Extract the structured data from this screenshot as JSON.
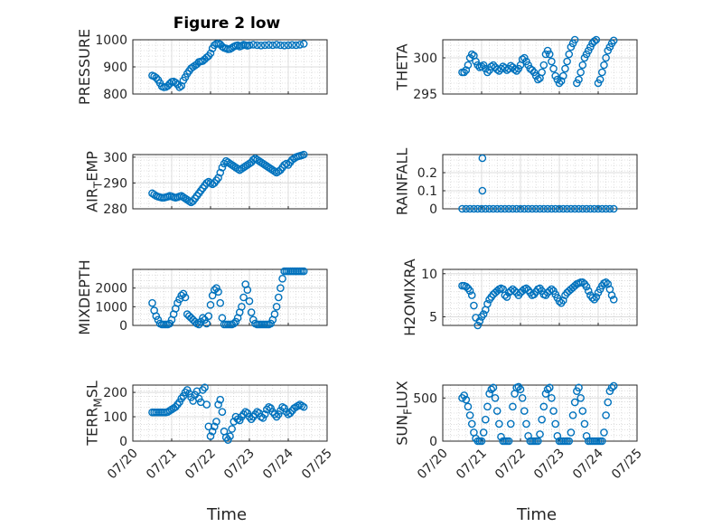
{
  "figure": {
    "title": "Figure 2 low",
    "xlabel": "Time"
  },
  "colors": {
    "marker": "#0072BD",
    "axis": "#262626",
    "grid": "#dcdcdc",
    "minor_grid": "#c8c8c8"
  },
  "chart_data": [
    {
      "id": "pressure",
      "type": "scatter",
      "ylabel": "PRESSURE",
      "ylim": [
        800,
        1000
      ],
      "yticks": [
        800,
        900,
        1000
      ],
      "ytick_labels": [
        "800",
        "900",
        "1000"
      ],
      "xlim": [
        "07/20",
        "07/25"
      ],
      "xticks": [
        "07/20",
        "07/21",
        "07/22",
        "07/23",
        "07/24",
        "07/25"
      ],
      "grid": true,
      "x": [
        0.5,
        0.55,
        0.6,
        0.65,
        0.7,
        0.75,
        0.8,
        0.85,
        0.9,
        0.95,
        1.0,
        1.05,
        1.1,
        1.15,
        1.2,
        1.25,
        1.3,
        1.35,
        1.4,
        1.45,
        1.5,
        1.55,
        1.6,
        1.65,
        1.7,
        1.75,
        1.8,
        1.85,
        1.9,
        1.95,
        2.0,
        2.05,
        2.1,
        2.15,
        2.2,
        2.25,
        2.3,
        2.35,
        2.4,
        2.45,
        2.5,
        2.55,
        2.6,
        2.65,
        2.7,
        2.75,
        2.8,
        2.85,
        2.9,
        2.95,
        3.0,
        3.1,
        3.2,
        3.3,
        3.4,
        3.5,
        3.6,
        3.7,
        3.8,
        3.9,
        4.0,
        4.1,
        4.2,
        4.3,
        4.4
      ],
      "y": [
        868,
        865,
        860,
        852,
        840,
        828,
        825,
        826,
        830,
        838,
        845,
        846,
        842,
        835,
        825,
        830,
        850,
        862,
        875,
        885,
        895,
        900,
        905,
        910,
        918,
        920,
        922,
        928,
        935,
        940,
        950,
        968,
        980,
        985,
        986,
        983,
        975,
        970,
        968,
        965,
        966,
        970,
        975,
        978,
        980,
        975,
        978,
        982,
        980,
        978,
        980,
        982,
        980,
        979,
        980,
        981,
        980,
        982,
        980,
        979,
        980,
        981,
        980,
        982,
        985
      ]
    },
    {
      "id": "theta",
      "type": "scatter",
      "ylabel": "THETA",
      "ylim": [
        295,
        302.5
      ],
      "yticks": [
        295,
        300
      ],
      "ytick_labels": [
        "295",
        "300"
      ],
      "xlim": [
        "07/20",
        "07/25"
      ],
      "xticks": [
        "07/20",
        "07/21",
        "07/22",
        "07/23",
        "07/24",
        "07/25"
      ],
      "grid": true,
      "x": [
        0.5,
        0.55,
        0.6,
        0.65,
        0.7,
        0.75,
        0.8,
        0.85,
        0.9,
        0.95,
        1.0,
        1.05,
        1.1,
        1.15,
        1.2,
        1.25,
        1.3,
        1.35,
        1.4,
        1.45,
        1.5,
        1.55,
        1.6,
        1.65,
        1.7,
        1.75,
        1.8,
        1.85,
        1.9,
        1.95,
        2.0,
        2.05,
        2.1,
        2.15,
        2.2,
        2.25,
        2.3,
        2.35,
        2.4,
        2.45,
        2.5,
        2.55,
        2.6,
        2.65,
        2.7,
        2.75,
        2.8,
        2.85,
        2.9,
        2.95,
        3.0,
        3.05,
        3.1,
        3.15,
        3.2,
        3.25,
        3.3,
        3.35,
        3.4,
        3.45,
        3.5,
        3.55,
        3.6,
        3.65,
        3.7,
        3.75,
        3.8,
        3.85,
        3.9,
        3.95,
        4.0,
        4.05,
        4.1,
        4.15,
        4.2,
        4.25,
        4.3,
        4.35,
        4.4
      ],
      "y": [
        298,
        298,
        298.3,
        299,
        300,
        300.5,
        300.3,
        299.5,
        299,
        298.7,
        298.8,
        299,
        298.5,
        298,
        298.3,
        298.8,
        299,
        298.7,
        298.4,
        298.2,
        298.5,
        298.8,
        298.6,
        298.3,
        298.5,
        298.9,
        298.7,
        298.4,
        298.2,
        298.5,
        299,
        299.8,
        300,
        299.5,
        299,
        298.5,
        298.3,
        298,
        297.5,
        297,
        297.2,
        298,
        299,
        300.5,
        301,
        300.5,
        299.5,
        298.5,
        297.5,
        297,
        296.5,
        296.8,
        297.5,
        298.5,
        299.5,
        300.5,
        301.5,
        302,
        302.5,
        296.5,
        297,
        298,
        299,
        300,
        300.5,
        301,
        301.5,
        302,
        302.3,
        302.5,
        296.5,
        297,
        298,
        299,
        300,
        301,
        301.5,
        302,
        302.4
      ]
    },
    {
      "id": "air_temp",
      "type": "scatter",
      "ylabel": "AIR_TEMP",
      "ylim": [
        280,
        301
      ],
      "yticks": [
        280,
        290,
        300
      ],
      "ytick_labels": [
        "280",
        "290",
        "300"
      ],
      "xlim": [
        "07/20",
        "07/25"
      ],
      "xticks": [
        "07/20",
        "07/21",
        "07/22",
        "07/23",
        "07/24",
        "07/25"
      ],
      "grid": true,
      "x": [
        0.5,
        0.55,
        0.6,
        0.65,
        0.7,
        0.75,
        0.8,
        0.85,
        0.9,
        0.95,
        1.0,
        1.05,
        1.1,
        1.15,
        1.2,
        1.25,
        1.3,
        1.35,
        1.4,
        1.45,
        1.5,
        1.55,
        1.6,
        1.65,
        1.7,
        1.75,
        1.8,
        1.85,
        1.9,
        1.95,
        2.0,
        2.05,
        2.1,
        2.15,
        2.2,
        2.25,
        2.3,
        2.35,
        2.4,
        2.45,
        2.5,
        2.55,
        2.6,
        2.65,
        2.7,
        2.75,
        2.8,
        2.85,
        2.9,
        2.95,
        3.0,
        3.05,
        3.1,
        3.15,
        3.2,
        3.25,
        3.3,
        3.35,
        3.4,
        3.45,
        3.5,
        3.55,
        3.6,
        3.65,
        3.7,
        3.75,
        3.8,
        3.85,
        3.9,
        3.95,
        4.0,
        4.05,
        4.1,
        4.15,
        4.2,
        4.25,
        4.3,
        4.35,
        4.4
      ],
      "y": [
        286,
        285.5,
        285,
        284.7,
        284.5,
        284.3,
        284.3,
        284.5,
        284.7,
        285,
        284.8,
        284.5,
        284.3,
        284.5,
        284.8,
        285,
        284.5,
        284,
        283.5,
        283,
        282.5,
        283,
        284,
        285,
        286,
        287,
        288,
        289,
        290,
        290.5,
        290,
        289.5,
        290,
        291,
        292,
        294,
        296,
        297.5,
        298.5,
        298,
        297.5,
        297,
        296.5,
        296,
        295.5,
        295,
        295.5,
        296,
        296.5,
        297,
        297.5,
        298,
        299,
        299.5,
        299,
        298.5,
        298,
        297.5,
        297,
        296.5,
        296,
        295.5,
        295,
        294.5,
        294,
        294.5,
        295,
        296,
        297,
        297.5,
        297,
        298,
        299,
        299.5,
        300,
        300.3,
        300.5,
        300.7,
        301
      ]
    },
    {
      "id": "rainfall",
      "type": "scatter",
      "ylabel": "RAINFALL",
      "ylim": [
        0,
        0.3
      ],
      "yticks": [
        0,
        0.1,
        0.2
      ],
      "ytick_labels": [
        "0",
        "0.1",
        "0.2"
      ],
      "xlim": [
        "07/20",
        "07/25"
      ],
      "xticks": [
        "07/20",
        "07/21",
        "07/22",
        "07/23",
        "07/24",
        "07/25"
      ],
      "grid": true,
      "x": [
        0.5,
        0.6,
        0.7,
        0.8,
        0.9,
        1.0,
        1.1,
        1.2,
        1.3,
        1.4,
        1.5,
        1.6,
        1.7,
        1.8,
        1.9,
        2.0,
        2.1,
        2.2,
        2.3,
        2.4,
        2.5,
        2.6,
        2.7,
        2.8,
        2.9,
        3.0,
        3.1,
        3.2,
        3.3,
        3.4,
        3.5,
        3.6,
        3.7,
        3.8,
        3.9,
        4.0,
        4.1,
        4.2,
        4.3,
        4.4,
        1.02,
        1.02
      ],
      "y": [
        0,
        0,
        0,
        0,
        0,
        0,
        0,
        0,
        0,
        0,
        0,
        0,
        0,
        0,
        0,
        0,
        0,
        0,
        0,
        0,
        0,
        0,
        0,
        0,
        0,
        0,
        0,
        0,
        0,
        0,
        0,
        0,
        0,
        0,
        0,
        0,
        0,
        0,
        0,
        0,
        0.1,
        0.28
      ]
    },
    {
      "id": "mixdepth",
      "type": "scatter",
      "ylabel": "MIXDEPTH",
      "ylim": [
        0,
        3000
      ],
      "yticks": [
        0,
        1000,
        2000
      ],
      "ytick_labels": [
        "0",
        "1000",
        "2000"
      ],
      "xlim": [
        "07/20",
        "07/25"
      ],
      "xticks": [
        "07/20",
        "07/21",
        "07/22",
        "07/23",
        "07/24",
        "07/25"
      ],
      "grid": true,
      "x": [
        0.5,
        0.55,
        0.6,
        0.65,
        0.7,
        0.75,
        0.8,
        0.85,
        0.9,
        0.95,
        1.0,
        1.05,
        1.1,
        1.15,
        1.2,
        1.25,
        1.3,
        1.35,
        1.4,
        1.45,
        1.5,
        1.55,
        1.6,
        1.65,
        1.7,
        1.75,
        1.8,
        1.85,
        1.9,
        1.95,
        2.0,
        2.05,
        2.1,
        2.15,
        2.2,
        2.25,
        2.3,
        2.35,
        2.4,
        2.45,
        2.5,
        2.55,
        2.6,
        2.65,
        2.7,
        2.75,
        2.8,
        2.85,
        2.9,
        2.95,
        3.0,
        3.05,
        3.1,
        3.15,
        3.2,
        3.25,
        3.3,
        3.35,
        3.4,
        3.45,
        3.5,
        3.55,
        3.6,
        3.65,
        3.7,
        3.75,
        3.8,
        3.85,
        3.9,
        3.95,
        4.0,
        4.05,
        4.1,
        4.15,
        4.2,
        4.25,
        4.3,
        4.35,
        4.4
      ],
      "y": [
        1200,
        800,
        500,
        300,
        100,
        50,
        50,
        50,
        50,
        100,
        300,
        600,
        900,
        1200,
        1400,
        1600,
        1700,
        1500,
        600,
        500,
        400,
        300,
        200,
        100,
        50,
        200,
        400,
        300,
        100,
        500,
        1100,
        1600,
        1900,
        2000,
        1800,
        1200,
        400,
        50,
        50,
        50,
        50,
        50,
        100,
        200,
        400,
        700,
        1000,
        1500,
        2200,
        1900,
        1300,
        700,
        300,
        100,
        50,
        50,
        50,
        50,
        50,
        50,
        50,
        100,
        300,
        600,
        1000,
        1500,
        2000,
        2500,
        2900,
        2900,
        2900,
        2900,
        2900,
        2900,
        2900,
        2900,
        2900,
        2900,
        2900
      ]
    },
    {
      "id": "h2omixra",
      "type": "scatter",
      "ylabel": "H2OMIXRA",
      "ylim": [
        4,
        10.5
      ],
      "yticks": [
        5,
        10
      ],
      "ytick_labels": [
        "5",
        "10"
      ],
      "xlim": [
        "07/20",
        "07/25"
      ],
      "xticks": [
        "07/20",
        "07/21",
        "07/22",
        "07/23",
        "07/24",
        "07/25"
      ],
      "grid": true,
      "x": [
        0.5,
        0.55,
        0.6,
        0.65,
        0.7,
        0.75,
        0.8,
        0.85,
        0.9,
        0.95,
        1.0,
        1.05,
        1.1,
        1.15,
        1.2,
        1.25,
        1.3,
        1.35,
        1.4,
        1.45,
        1.5,
        1.55,
        1.6,
        1.65,
        1.7,
        1.75,
        1.8,
        1.85,
        1.9,
        1.95,
        2.0,
        2.05,
        2.1,
        2.15,
        2.2,
        2.25,
        2.3,
        2.35,
        2.4,
        2.45,
        2.5,
        2.55,
        2.6,
        2.65,
        2.7,
        2.75,
        2.8,
        2.85,
        2.9,
        2.95,
        3.0,
        3.05,
        3.1,
        3.15,
        3.2,
        3.25,
        3.3,
        3.35,
        3.4,
        3.45,
        3.5,
        3.55,
        3.6,
        3.65,
        3.7,
        3.75,
        3.8,
        3.85,
        3.9,
        3.95,
        4.0,
        4.05,
        4.1,
        4.15,
        4.2,
        4.25,
        4.3,
        4.35,
        4.4
      ],
      "y": [
        8.6,
        8.6,
        8.5,
        8.3,
        8,
        7.5,
        6.3,
        4.9,
        4,
        4.5,
        5,
        5.3,
        5.8,
        6.5,
        7,
        7.3,
        7.6,
        7.8,
        8,
        8.2,
        8.3,
        8.2,
        7.5,
        7.3,
        7.8,
        8,
        8.2,
        8,
        7.8,
        7.5,
        7.8,
        8,
        8.2,
        8.3,
        8.1,
        7.8,
        7.5,
        7.6,
        7.9,
        8.2,
        8.3,
        8,
        7.6,
        7.5,
        7.8,
        8,
        8.2,
        8,
        7.6,
        7.2,
        6.8,
        6.6,
        6.9,
        7.5,
        7.8,
        8,
        8.2,
        8.4,
        8.6,
        8.8,
        8.9,
        9,
        9,
        8.8,
        8.5,
        8,
        7.5,
        7.2,
        7,
        7.3,
        7.8,
        8.2,
        8.6,
        8.9,
        9,
        8.8,
        8.2,
        7.5,
        7
      ]
    },
    {
      "id": "terr_msl",
      "type": "scatter",
      "ylabel": "TERR_MSL",
      "ylim": [
        0,
        230
      ],
      "yticks": [
        0,
        100,
        200
      ],
      "ytick_labels": [
        "0",
        "100",
        "200"
      ],
      "xlim": [
        "07/20",
        "07/25"
      ],
      "xticks": [
        "07/20",
        "07/21",
        "07/22",
        "07/23",
        "07/24",
        "07/25"
      ],
      "grid": true,
      "x": [
        0.5,
        0.55,
        0.6,
        0.65,
        0.7,
        0.75,
        0.8,
        0.85,
        0.9,
        0.95,
        1.0,
        1.05,
        1.1,
        1.15,
        1.2,
        1.25,
        1.3,
        1.35,
        1.4,
        1.45,
        1.5,
        1.55,
        1.6,
        1.65,
        1.7,
        1.75,
        1.8,
        1.85,
        1.9,
        1.95,
        2.0,
        2.05,
        2.1,
        2.15,
        2.2,
        2.25,
        2.3,
        2.35,
        2.4,
        2.45,
        2.5,
        2.55,
        2.6,
        2.65,
        2.7,
        2.75,
        2.8,
        2.85,
        2.9,
        2.95,
        3.0,
        3.05,
        3.1,
        3.15,
        3.2,
        3.25,
        3.3,
        3.35,
        3.4,
        3.45,
        3.5,
        3.55,
        3.6,
        3.65,
        3.7,
        3.75,
        3.8,
        3.85,
        3.9,
        3.95,
        4.0,
        4.05,
        4.1,
        4.15,
        4.2,
        4.25,
        4.3,
        4.35,
        4.4
      ],
      "y": [
        118,
        118,
        118,
        118,
        118,
        118,
        118,
        118,
        120,
        125,
        130,
        135,
        140,
        150,
        160,
        175,
        185,
        200,
        210,
        195,
        180,
        165,
        190,
        205,
        175,
        160,
        210,
        220,
        150,
        60,
        20,
        40,
        60,
        80,
        150,
        170,
        120,
        40,
        15,
        5,
        20,
        50,
        80,
        100,
        90,
        85,
        100,
        110,
        120,
        115,
        100,
        90,
        100,
        110,
        120,
        115,
        100,
        95,
        110,
        130,
        140,
        135,
        120,
        110,
        100,
        110,
        125,
        140,
        135,
        120,
        110,
        115,
        125,
        135,
        140,
        145,
        150,
        145,
        140
      ]
    },
    {
      "id": "sun_flux",
      "type": "scatter",
      "ylabel": "SUN_FLUX",
      "ylim": [
        0,
        650
      ],
      "yticks": [
        0,
        500
      ],
      "ytick_labels": [
        "0",
        "500"
      ],
      "xlim": [
        "07/20",
        "07/25"
      ],
      "xticks": [
        "07/20",
        "07/21",
        "07/22",
        "07/23",
        "07/24",
        "07/25"
      ],
      "grid": true,
      "x": [
        0.5,
        0.55,
        0.6,
        0.65,
        0.7,
        0.75,
        0.8,
        0.85,
        0.9,
        0.95,
        1.0,
        1.05,
        1.1,
        1.15,
        1.2,
        1.25,
        1.3,
        1.35,
        1.4,
        1.45,
        1.5,
        1.55,
        1.6,
        1.65,
        1.7,
        1.75,
        1.8,
        1.85,
        1.9,
        1.95,
        2.0,
        2.05,
        2.1,
        2.15,
        2.2,
        2.25,
        2.3,
        2.35,
        2.4,
        2.45,
        2.5,
        2.55,
        2.6,
        2.65,
        2.7,
        2.75,
        2.8,
        2.85,
        2.9,
        2.95,
        3.0,
        3.05,
        3.1,
        3.15,
        3.2,
        3.25,
        3.3,
        3.35,
        3.4,
        3.45,
        3.5,
        3.55,
        3.6,
        3.65,
        3.7,
        3.75,
        3.8,
        3.85,
        3.9,
        3.95,
        4.0,
        4.05,
        4.1,
        4.15,
        4.2,
        4.25,
        4.3,
        4.35,
        4.4
      ],
      "y": [
        500,
        530,
        480,
        400,
        300,
        200,
        100,
        30,
        0,
        0,
        0,
        100,
        250,
        400,
        550,
        600,
        620,
        500,
        350,
        200,
        50,
        0,
        0,
        0,
        0,
        200,
        400,
        550,
        620,
        630,
        600,
        500,
        350,
        200,
        60,
        0,
        0,
        0,
        0,
        0,
        80,
        250,
        400,
        550,
        600,
        620,
        500,
        350,
        200,
        60,
        0,
        0,
        0,
        0,
        0,
        0,
        100,
        300,
        450,
        580,
        620,
        500,
        350,
        200,
        60,
        0,
        0,
        0,
        0,
        0,
        0,
        0,
        0,
        100,
        300,
        450,
        580,
        620,
        640
      ]
    }
  ]
}
